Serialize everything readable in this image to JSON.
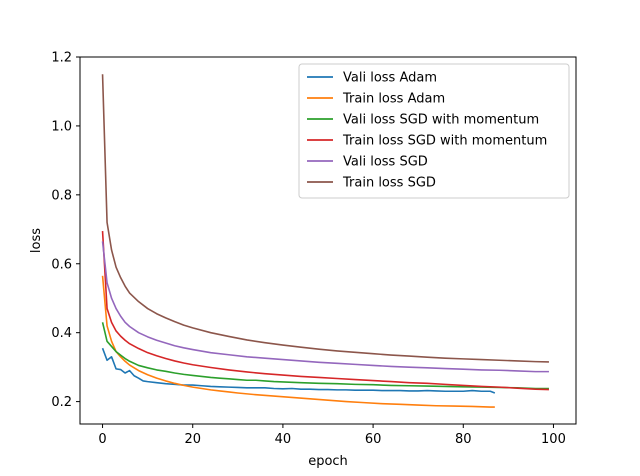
{
  "chart_data": {
    "type": "line",
    "xlabel": "epoch",
    "ylabel": "loss",
    "xlim": [
      -5,
      105
    ],
    "ylim": [
      0.135,
      1.2
    ],
    "xticks": [
      0,
      20,
      40,
      60,
      80,
      100
    ],
    "yticks": [
      0.2,
      0.4,
      0.6,
      0.8,
      1.0,
      1.2
    ],
    "xtick_labels": [
      "0",
      "20",
      "40",
      "60",
      "80",
      "100"
    ],
    "ytick_labels": [
      "0.2",
      "0.4",
      "0.6",
      "0.8",
      "1.0",
      "1.2"
    ],
    "grid": false,
    "legend_position": "top-right",
    "series": [
      {
        "name": "Vali loss Adam",
        "color": "#1f77b4",
        "x": [
          0,
          1,
          2,
          3,
          4,
          5,
          6,
          7,
          8,
          9,
          10,
          12,
          14,
          16,
          18,
          20,
          22,
          24,
          26,
          28,
          30,
          32,
          34,
          36,
          38,
          40,
          42,
          44,
          46,
          48,
          50,
          52,
          54,
          56,
          58,
          60,
          62,
          64,
          66,
          68,
          70,
          72,
          74,
          76,
          78,
          80,
          82,
          84,
          86,
          87
        ],
        "y": [
          0.355,
          0.32,
          0.33,
          0.295,
          0.293,
          0.283,
          0.29,
          0.275,
          0.268,
          0.26,
          0.258,
          0.255,
          0.252,
          0.25,
          0.248,
          0.248,
          0.246,
          0.244,
          0.243,
          0.242,
          0.241,
          0.24,
          0.24,
          0.24,
          0.238,
          0.237,
          0.238,
          0.236,
          0.236,
          0.235,
          0.235,
          0.234,
          0.234,
          0.233,
          0.233,
          0.233,
          0.232,
          0.232,
          0.232,
          0.231,
          0.231,
          0.232,
          0.231,
          0.23,
          0.23,
          0.23,
          0.232,
          0.23,
          0.23,
          0.225
        ]
      },
      {
        "name": "Train loss Adam",
        "color": "#ff7f0e",
        "x": [
          0,
          1,
          2,
          3,
          4,
          5,
          6,
          8,
          10,
          12,
          14,
          16,
          18,
          20,
          22,
          24,
          26,
          28,
          30,
          34,
          38,
          42,
          46,
          50,
          54,
          58,
          62,
          66,
          70,
          74,
          78,
          82,
          86,
          87
        ],
        "y": [
          0.565,
          0.42,
          0.375,
          0.345,
          0.33,
          0.317,
          0.306,
          0.29,
          0.278,
          0.268,
          0.26,
          0.253,
          0.247,
          0.242,
          0.238,
          0.234,
          0.231,
          0.228,
          0.225,
          0.22,
          0.216,
          0.212,
          0.208,
          0.204,
          0.2,
          0.197,
          0.194,
          0.192,
          0.19,
          0.188,
          0.187,
          0.186,
          0.184,
          0.184
        ]
      },
      {
        "name": "Vali loss SGD with momentum",
        "color": "#2ca02c",
        "x": [
          0,
          1,
          2,
          3,
          4,
          5,
          6,
          8,
          10,
          12,
          14,
          16,
          18,
          20,
          22,
          24,
          26,
          28,
          30,
          32,
          34,
          36,
          38,
          40,
          44,
          48,
          52,
          56,
          60,
          64,
          68,
          72,
          76,
          80,
          84,
          88,
          92,
          96,
          99
        ],
        "y": [
          0.43,
          0.375,
          0.36,
          0.345,
          0.335,
          0.325,
          0.317,
          0.305,
          0.298,
          0.292,
          0.288,
          0.283,
          0.279,
          0.276,
          0.273,
          0.27,
          0.268,
          0.266,
          0.264,
          0.262,
          0.262,
          0.26,
          0.258,
          0.257,
          0.255,
          0.253,
          0.252,
          0.25,
          0.249,
          0.247,
          0.246,
          0.245,
          0.244,
          0.243,
          0.242,
          0.241,
          0.24,
          0.238,
          0.238
        ]
      },
      {
        "name": "Train loss SGD with momentum",
        "color": "#d62728",
        "x": [
          0,
          1,
          2,
          3,
          4,
          5,
          6,
          8,
          10,
          12,
          14,
          16,
          18,
          20,
          24,
          28,
          32,
          36,
          40,
          44,
          48,
          52,
          56,
          60,
          64,
          68,
          72,
          76,
          80,
          84,
          88,
          92,
          96,
          99
        ],
        "y": [
          0.695,
          0.47,
          0.43,
          0.405,
          0.39,
          0.378,
          0.368,
          0.354,
          0.342,
          0.333,
          0.325,
          0.318,
          0.312,
          0.307,
          0.299,
          0.292,
          0.286,
          0.281,
          0.277,
          0.273,
          0.27,
          0.267,
          0.264,
          0.261,
          0.258,
          0.255,
          0.253,
          0.25,
          0.247,
          0.244,
          0.242,
          0.239,
          0.236,
          0.235
        ]
      },
      {
        "name": "Vali loss SGD",
        "color": "#9467bd",
        "x": [
          0,
          1,
          2,
          3,
          4,
          5,
          6,
          8,
          10,
          12,
          14,
          16,
          18,
          20,
          24,
          28,
          32,
          36,
          40,
          44,
          48,
          52,
          56,
          60,
          64,
          68,
          72,
          76,
          80,
          84,
          88,
          92,
          96,
          99
        ],
        "y": [
          0.665,
          0.545,
          0.5,
          0.47,
          0.448,
          0.43,
          0.418,
          0.4,
          0.388,
          0.378,
          0.37,
          0.362,
          0.356,
          0.351,
          0.342,
          0.336,
          0.33,
          0.326,
          0.322,
          0.318,
          0.314,
          0.311,
          0.308,
          0.305,
          0.302,
          0.3,
          0.298,
          0.296,
          0.294,
          0.292,
          0.291,
          0.289,
          0.287,
          0.287
        ]
      },
      {
        "name": "Train loss SGD",
        "color": "#8c564b",
        "x": [
          0,
          1,
          2,
          3,
          4,
          5,
          6,
          8,
          10,
          12,
          14,
          16,
          18,
          20,
          24,
          28,
          32,
          36,
          40,
          44,
          48,
          52,
          56,
          60,
          64,
          68,
          72,
          76,
          80,
          84,
          88,
          92,
          96,
          99
        ],
        "y": [
          1.15,
          0.72,
          0.64,
          0.59,
          0.56,
          0.535,
          0.515,
          0.49,
          0.47,
          0.455,
          0.443,
          0.432,
          0.422,
          0.414,
          0.4,
          0.389,
          0.379,
          0.371,
          0.364,
          0.358,
          0.352,
          0.347,
          0.343,
          0.339,
          0.335,
          0.332,
          0.329,
          0.326,
          0.324,
          0.322,
          0.32,
          0.318,
          0.316,
          0.315
        ]
      }
    ]
  }
}
